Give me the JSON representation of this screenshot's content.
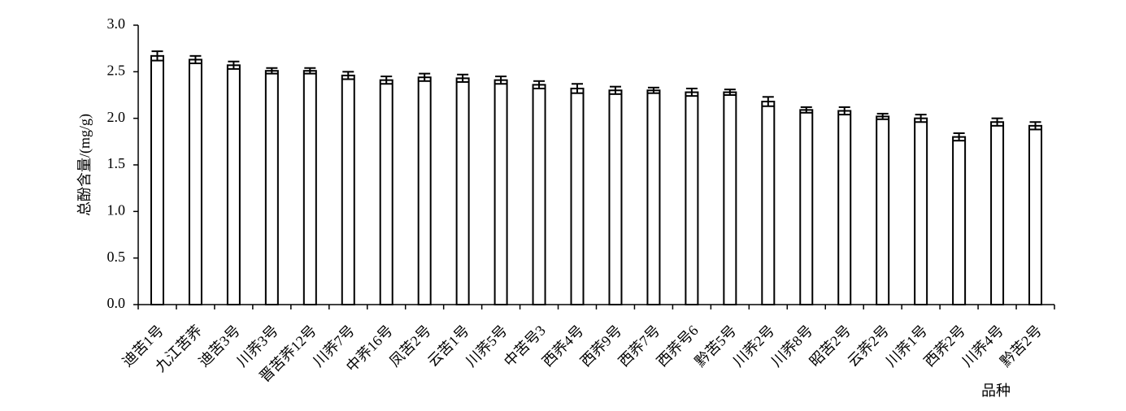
{
  "chart_data": {
    "type": "bar",
    "ylabel": "总酚含量/(mg/g)",
    "xlabel": "品种",
    "categories": [
      "迪苦1号",
      "九江苦荞",
      "迪苦3号",
      "川荞3号",
      "晋苦荞12号",
      "川荞7号",
      "中荞16号",
      "凤苦2号",
      "云苦1号",
      "川荞5号",
      "中苦号3",
      "西荞4号",
      "西荞9号",
      "西荞7号",
      "西荞号6",
      "黔苦5号",
      "川荞2号",
      "川荞8号",
      "昭苦2号",
      "云荞2号",
      "川荞1号",
      "西荞2号",
      "川荞4号",
      "黔苦2号"
    ],
    "values": [
      2.67,
      2.63,
      2.57,
      2.51,
      2.51,
      2.46,
      2.41,
      2.44,
      2.43,
      2.41,
      2.36,
      2.32,
      2.3,
      2.3,
      2.28,
      2.28,
      2.18,
      2.09,
      2.08,
      2.02,
      2.0,
      1.8,
      1.96,
      1.92
    ],
    "errors": [
      0.05,
      0.04,
      0.04,
      0.03,
      0.03,
      0.04,
      0.04,
      0.04,
      0.04,
      0.04,
      0.04,
      0.05,
      0.04,
      0.03,
      0.04,
      0.03,
      0.05,
      0.03,
      0.04,
      0.03,
      0.04,
      0.04,
      0.04,
      0.04
    ],
    "color": "#ffffff",
    "edgecolor": "#000000",
    "ylim": [
      0,
      3
    ],
    "yticks": [
      {
        "value": 0,
        "label": "0.0"
      },
      {
        "value": 0.5,
        "label": "0.5"
      },
      {
        "value": 1,
        "label": "1.0"
      },
      {
        "value": 1.5,
        "label": "1.5"
      },
      {
        "value": 2,
        "label": "2.0"
      },
      {
        "value": 2.5,
        "label": "2.5"
      },
      {
        "value": 3,
        "label": "3.0"
      }
    ],
    "grid": false
  }
}
